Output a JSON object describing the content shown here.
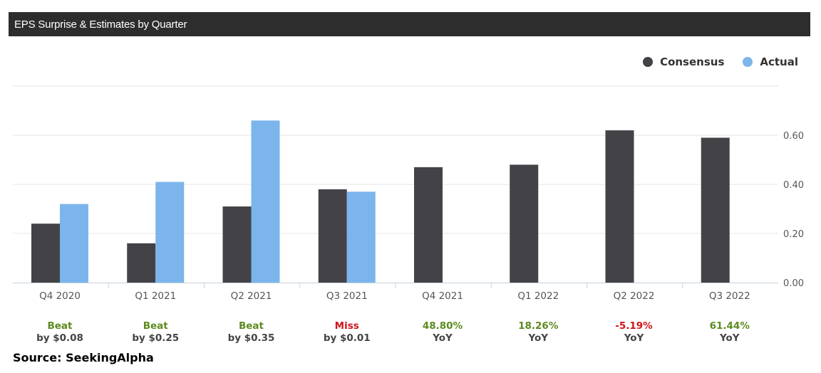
{
  "header": {
    "title": "EPS Surprise & Estimates by Quarter"
  },
  "colors": {
    "consensus": "#424247",
    "actual": "#7cb5ec",
    "beat": "#5c8a1f",
    "miss": "#d0141b",
    "header_bg": "#2d2d2d"
  },
  "chart_data": {
    "type": "bar",
    "categories": [
      "Q4 2020",
      "Q1 2021",
      "Q2 2021",
      "Q3 2021",
      "Q4 2021",
      "Q1 2022",
      "Q2 2022",
      "Q3 2022"
    ],
    "series": [
      {
        "name": "Consensus",
        "values": [
          0.24,
          0.16,
          0.31,
          0.38,
          0.47,
          0.48,
          0.62,
          0.59
        ]
      },
      {
        "name": "Actual",
        "values": [
          0.32,
          0.41,
          0.66,
          0.37,
          null,
          null,
          null,
          null
        ]
      }
    ],
    "ylim": [
      0,
      0.8
    ],
    "yticks": [
      "0.00",
      "0.20",
      "0.40",
      "0.60"
    ],
    "yaxis_side": "right",
    "grid": true,
    "legend": "top-right",
    "results": [
      {
        "line1": "Beat",
        "line2": "by $0.08",
        "status": "beat"
      },
      {
        "line1": "Beat",
        "line2": "by $0.25",
        "status": "beat"
      },
      {
        "line1": "Beat",
        "line2": "by $0.35",
        "status": "beat"
      },
      {
        "line1": "Miss",
        "line2": "by $0.01",
        "status": "miss"
      },
      {
        "line1": "48.80%",
        "line2": "YoY",
        "status": "beat"
      },
      {
        "line1": "18.26%",
        "line2": "YoY",
        "status": "beat"
      },
      {
        "line1": "-5.19%",
        "line2": "YoY",
        "status": "miss"
      },
      {
        "line1": "61.44%",
        "line2": "YoY",
        "status": "beat"
      }
    ]
  },
  "source": "Source: SeekingAlpha"
}
